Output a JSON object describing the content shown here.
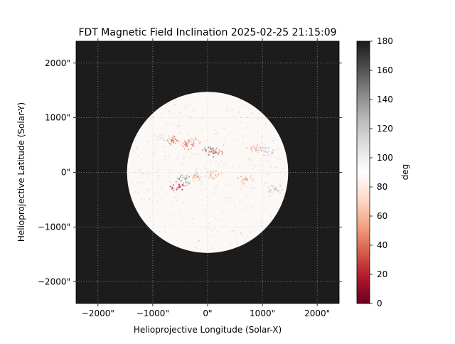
{
  "chart_data": {
    "type": "heatmap",
    "title": "FDT Magnetic Field Inclination 2025-02-25 21:15:09",
    "xlabel": "Helioprojective Longitude (Solar-X)",
    "ylabel": "Helioprojective Latitude (Solar-Y)",
    "xlim": [
      -2400,
      2400
    ],
    "ylim": [
      -2400,
      2400
    ],
    "x_ticks": [
      {
        "value": -2000,
        "label": "−2000\""
      },
      {
        "value": -1000,
        "label": "−1000\""
      },
      {
        "value": 0,
        "label": "0\""
      },
      {
        "value": 1000,
        "label": "1000\""
      },
      {
        "value": 2000,
        "label": "2000\""
      }
    ],
    "y_ticks": [
      {
        "value": 2000,
        "label": "2000\""
      },
      {
        "value": 1000,
        "label": "1000\""
      },
      {
        "value": 0,
        "label": "0\""
      },
      {
        "value": -1000,
        "label": "−1000\""
      },
      {
        "value": -2000,
        "label": "−2000\""
      }
    ],
    "grid": true,
    "grid_style": "dotted",
    "solar_disk": {
      "center": [
        0,
        0
      ],
      "radius": 1470
    },
    "features": [
      {
        "x": -650,
        "y": 600,
        "value": 35
      },
      {
        "x": -400,
        "y": 520,
        "value": 40
      },
      {
        "x": -300,
        "y": 570,
        "value": 45
      },
      {
        "x": -850,
        "y": 640,
        "value": 115
      },
      {
        "x": 120,
        "y": 380,
        "value": 30
      },
      {
        "x": 50,
        "y": 420,
        "value": 145
      },
      {
        "x": -550,
        "y": -250,
        "value": 25
      },
      {
        "x": -420,
        "y": -120,
        "value": 150
      },
      {
        "x": -250,
        "y": -60,
        "value": 60
      },
      {
        "x": 50,
        "y": -30,
        "value": 55
      },
      {
        "x": 700,
        "y": -120,
        "value": 55
      },
      {
        "x": 1250,
        "y": -300,
        "value": 130
      },
      {
        "x": 1050,
        "y": 400,
        "value": 120
      },
      {
        "x": 850,
        "y": 450,
        "value": 60
      }
    ],
    "colorbar": {
      "label": "deg",
      "min": 0,
      "max": 180,
      "ticks": [
        0,
        20,
        40,
        60,
        80,
        100,
        120,
        140,
        160,
        180
      ],
      "colormap": "RdGy-like",
      "colors": [
        "#67001f",
        "#b2182b",
        "#d6604d",
        "#f4a582",
        "#fddbc7",
        "#ffffff",
        "#e0e0e0",
        "#bababa",
        "#878787",
        "#4d4d4d",
        "#1a1a1a"
      ]
    },
    "off_disk_color": "#1c1c1c",
    "disk_background_color": "#fbf8f6"
  }
}
